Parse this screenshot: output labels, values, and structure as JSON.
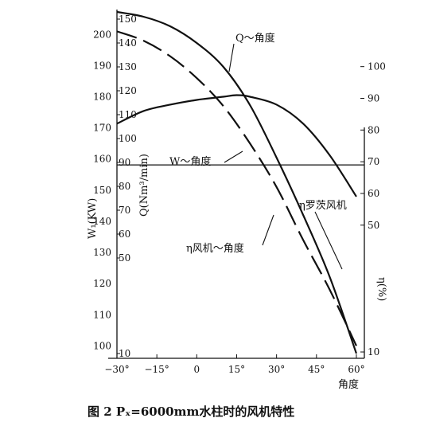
{
  "chart_data": {
    "type": "line",
    "caption": "图 2 Pₓ=6000mm水柱时的风机特性",
    "xlabel": "角度",
    "x_ticks": [
      "−30°",
      "−15°",
      "0",
      "15°",
      "30°",
      "45°",
      "60°"
    ],
    "xlim": [
      -30,
      63
    ],
    "axes": {
      "W": {
        "label": "W₁(KW)",
        "ticks": [
          100,
          110,
          120,
          130,
          140,
          150,
          160,
          170,
          180,
          190,
          200
        ],
        "lim": [
          96,
          208
        ]
      },
      "Q": {
        "label": "Q(Nm³/min)",
        "ticks": [
          10,
          50,
          60,
          70,
          80,
          90,
          100,
          110,
          120,
          130,
          140,
          150
        ],
        "lim": [
          8,
          154
        ]
      },
      "eta": {
        "label": "η(%)",
        "ticks": [
          10,
          50,
          60,
          70,
          80,
          90,
          100
        ],
        "lim": [
          8,
          118
        ]
      }
    },
    "series": [
      {
        "name": "Q～角度",
        "axis": "Q",
        "style": "solid",
        "x": [
          -30,
          -20,
          -10,
          0,
          10,
          20,
          30,
          40,
          50,
          60
        ],
        "y": [
          153,
          151,
          147,
          140,
          130,
          114,
          92,
          68,
          42,
          10
        ]
      },
      {
        "name": "W～角度",
        "axis": "W",
        "style": "dashed",
        "x": [
          -30,
          -20,
          -10,
          0,
          10,
          20,
          30,
          40,
          50,
          60
        ],
        "y": [
          201,
          198,
          193,
          186,
          177,
          165,
          151,
          134,
          118,
          100
        ]
      },
      {
        "name": "η风机～角度",
        "axis": "eta",
        "style": "solid",
        "x": [
          -30,
          -20,
          -10,
          0,
          10,
          15,
          20,
          30,
          40,
          50,
          60
        ],
        "y": [
          82,
          86,
          88,
          89.5,
          90.5,
          91,
          90.5,
          88,
          82,
          72,
          59
        ]
      },
      {
        "name": "η罗茨风机",
        "axis": "eta",
        "style": "solid",
        "x": [
          -30,
          63
        ],
        "y": [
          69,
          69
        ]
      }
    ]
  }
}
